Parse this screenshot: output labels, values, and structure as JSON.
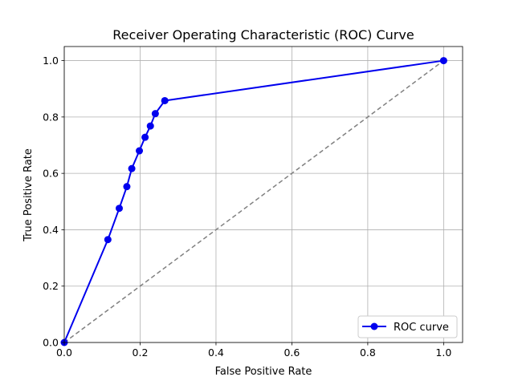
{
  "chart_data": {
    "type": "line",
    "title": "Receiver Operating Characteristic (ROC) Curve",
    "xlabel": "False Positive Rate",
    "ylabel": "True Positive Rate",
    "xlim": [
      0.0,
      1.05
    ],
    "ylim": [
      0.0,
      1.05
    ],
    "x_ticks": [
      0.0,
      0.2,
      0.4,
      0.6,
      0.8,
      1.0
    ],
    "y_ticks": [
      0.0,
      0.2,
      0.4,
      0.6,
      0.8,
      1.0
    ],
    "x_tick_labels": [
      "0.0",
      "0.2",
      "0.4",
      "0.6",
      "0.8",
      "1.0"
    ],
    "y_tick_labels": [
      "0.0",
      "0.2",
      "0.4",
      "0.6",
      "0.8",
      "1.0"
    ],
    "grid": true,
    "legend_position": "lower-right",
    "series": [
      {
        "name": "ROC curve",
        "color": "#0000ee",
        "marker": "circle",
        "x": [
          0.0,
          0.115,
          0.145,
          0.165,
          0.178,
          0.198,
          0.213,
          0.227,
          0.24,
          0.265,
          1.0
        ],
        "y": [
          0.0,
          0.365,
          0.476,
          0.553,
          0.617,
          0.68,
          0.728,
          0.768,
          0.812,
          0.858,
          1.0
        ]
      }
    ],
    "reference_line": {
      "color": "#808080",
      "style": "dashed",
      "x": [
        0.0,
        1.0
      ],
      "y": [
        0.0,
        1.0
      ]
    }
  }
}
